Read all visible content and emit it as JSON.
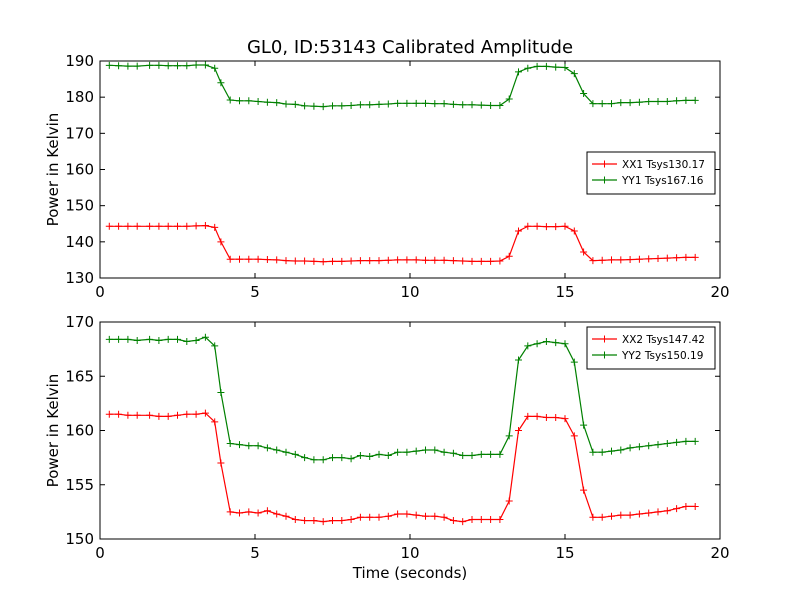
{
  "figure": {
    "title": "GL0, ID:53143 Calibrated Amplitude",
    "xlabel": "Time (seconds)"
  },
  "colors": {
    "red": "#ff0000",
    "green": "#008000"
  },
  "chart_data": [
    {
      "type": "line",
      "ylabel": "Power in Kelvin",
      "xlim": [
        0,
        20
      ],
      "ylim": [
        130,
        190
      ],
      "xticks": [
        "0",
        "5",
        "10",
        "15",
        "20"
      ],
      "yticks": [
        "130",
        "140",
        "150",
        "160",
        "170",
        "180",
        "190"
      ],
      "legend_position": "right",
      "x": [
        0.3,
        0.6,
        0.9,
        1.2,
        1.6,
        1.9,
        2.2,
        2.5,
        2.8,
        3.1,
        3.4,
        3.7,
        3.9,
        4.2,
        4.5,
        4.8,
        5.1,
        5.4,
        5.7,
        6.0,
        6.3,
        6.6,
        6.9,
        7.2,
        7.5,
        7.8,
        8.1,
        8.4,
        8.7,
        9.0,
        9.3,
        9.6,
        9.9,
        10.2,
        10.5,
        10.8,
        11.1,
        11.4,
        11.7,
        12.0,
        12.3,
        12.6,
        12.9,
        13.2,
        13.5,
        13.8,
        14.1,
        14.4,
        14.7,
        15.0,
        15.3,
        15.6,
        15.9,
        16.2,
        16.5,
        16.8,
        17.1,
        17.4,
        17.7,
        18.0,
        18.3,
        18.6,
        18.9,
        19.2
      ],
      "series": [
        {
          "name": "XX1 Tsys130.17",
          "color": "#ff0000",
          "values": [
            144.3,
            144.3,
            144.3,
            144.3,
            144.3,
            144.3,
            144.3,
            144.3,
            144.3,
            144.4,
            144.5,
            144.0,
            140.0,
            135.2,
            135.2,
            135.2,
            135.2,
            135.1,
            135.0,
            134.8,
            134.7,
            134.7,
            134.6,
            134.5,
            134.6,
            134.6,
            134.7,
            134.8,
            134.8,
            134.8,
            134.9,
            135.0,
            135.0,
            135.0,
            134.9,
            134.9,
            134.9,
            134.8,
            134.7,
            134.6,
            134.6,
            134.6,
            134.7,
            136.0,
            143.0,
            144.3,
            144.3,
            144.2,
            144.2,
            144.3,
            143.0,
            137.2,
            134.8,
            134.9,
            135.0,
            135.0,
            135.1,
            135.2,
            135.3,
            135.4,
            135.5,
            135.6,
            135.7,
            135.7
          ]
        },
        {
          "name": "YY1 Tsys167.16",
          "color": "#008000",
          "values": [
            188.8,
            188.7,
            188.6,
            188.6,
            188.8,
            188.8,
            188.7,
            188.7,
            188.7,
            188.9,
            188.9,
            188.0,
            184.0,
            179.2,
            179.0,
            179.0,
            178.8,
            178.6,
            178.5,
            178.1,
            178.0,
            177.6,
            177.5,
            177.4,
            177.6,
            177.6,
            177.7,
            177.9,
            177.9,
            178.0,
            178.1,
            178.3,
            178.3,
            178.3,
            178.3,
            178.2,
            178.2,
            178.0,
            177.9,
            177.9,
            177.8,
            177.7,
            177.7,
            179.5,
            187.0,
            188.0,
            188.5,
            188.5,
            188.3,
            188.2,
            186.5,
            181.0,
            178.2,
            178.2,
            178.2,
            178.5,
            178.5,
            178.6,
            178.8,
            178.8,
            178.8,
            179.0,
            179.1,
            179.1
          ]
        }
      ]
    },
    {
      "type": "line",
      "ylabel": "Power in Kelvin",
      "xlim": [
        0,
        20
      ],
      "ylim": [
        150,
        170
      ],
      "xticks": [
        "0",
        "5",
        "10",
        "15",
        "20"
      ],
      "yticks": [
        "150",
        "155",
        "160",
        "165",
        "170"
      ],
      "legend_position": "top-right",
      "x": [
        0.3,
        0.6,
        0.9,
        1.2,
        1.6,
        1.9,
        2.2,
        2.5,
        2.8,
        3.1,
        3.4,
        3.7,
        3.9,
        4.2,
        4.5,
        4.8,
        5.1,
        5.4,
        5.7,
        6.0,
        6.3,
        6.6,
        6.9,
        7.2,
        7.5,
        7.8,
        8.1,
        8.4,
        8.7,
        9.0,
        9.3,
        9.6,
        9.9,
        10.2,
        10.5,
        10.8,
        11.1,
        11.4,
        11.7,
        12.0,
        12.3,
        12.6,
        12.9,
        13.2,
        13.5,
        13.8,
        14.1,
        14.4,
        14.7,
        15.0,
        15.3,
        15.6,
        15.9,
        16.2,
        16.5,
        16.8,
        17.1,
        17.4,
        17.7,
        18.0,
        18.3,
        18.6,
        18.9,
        19.2
      ],
      "series": [
        {
          "name": "XX2 Tsys147.42",
          "color": "#ff0000",
          "values": [
            161.5,
            161.5,
            161.4,
            161.4,
            161.4,
            161.3,
            161.3,
            161.4,
            161.5,
            161.5,
            161.6,
            160.8,
            157.0,
            152.5,
            152.4,
            152.5,
            152.4,
            152.6,
            152.3,
            152.1,
            151.8,
            151.7,
            151.7,
            151.6,
            151.7,
            151.7,
            151.8,
            152.0,
            152.0,
            152.0,
            152.1,
            152.3,
            152.3,
            152.2,
            152.1,
            152.1,
            152.0,
            151.7,
            151.6,
            151.8,
            151.8,
            151.8,
            151.8,
            153.5,
            160.0,
            161.3,
            161.3,
            161.2,
            161.2,
            161.1,
            159.5,
            154.5,
            152.0,
            152.0,
            152.1,
            152.2,
            152.2,
            152.3,
            152.4,
            152.5,
            152.6,
            152.8,
            153.0,
            153.0
          ]
        },
        {
          "name": "YY2 Tsys150.19",
          "color": "#008000",
          "values": [
            168.4,
            168.4,
            168.4,
            168.3,
            168.4,
            168.3,
            168.4,
            168.4,
            168.2,
            168.3,
            168.6,
            167.8,
            163.5,
            158.8,
            158.7,
            158.6,
            158.6,
            158.4,
            158.2,
            158.0,
            157.8,
            157.5,
            157.3,
            157.3,
            157.5,
            157.5,
            157.4,
            157.7,
            157.6,
            157.8,
            157.7,
            158.0,
            158.0,
            158.1,
            158.2,
            158.2,
            158.0,
            157.9,
            157.7,
            157.7,
            157.8,
            157.8,
            157.8,
            159.5,
            166.5,
            167.8,
            168.0,
            168.2,
            168.1,
            168.0,
            166.3,
            160.5,
            158.0,
            158.0,
            158.1,
            158.2,
            158.4,
            158.5,
            158.6,
            158.7,
            158.8,
            158.9,
            159.0,
            159.0
          ]
        }
      ]
    }
  ]
}
